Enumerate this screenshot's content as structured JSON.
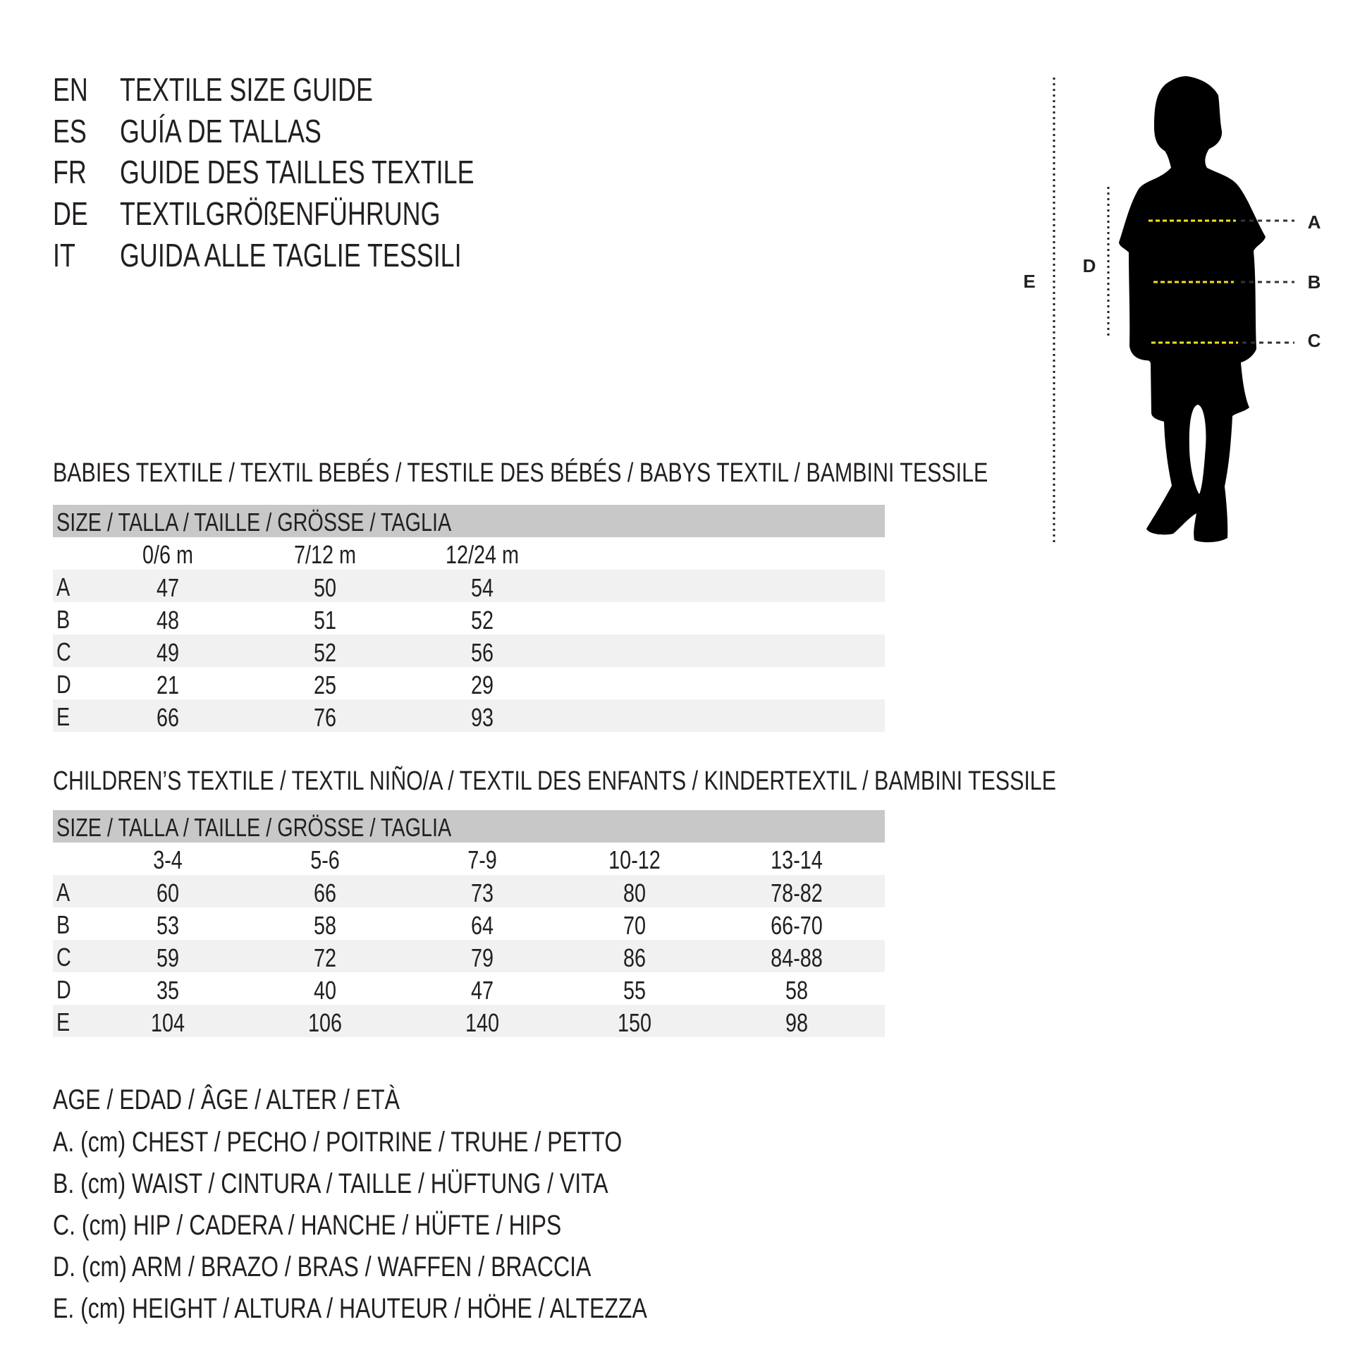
{
  "title_lines": [
    {
      "lang": "EN",
      "text": "TEXTILE SIZE GUIDE"
    },
    {
      "lang": "ES",
      "text": "GUÍA DE TALLAS"
    },
    {
      "lang": "FR",
      "text": "GUIDE DES TAILLES TEXTILE"
    },
    {
      "lang": "DE",
      "text": "TEXTILGRÖßENFÜHRUNG"
    },
    {
      "lang": "IT",
      "text": "GUIDA ALLE TAGLIE TESSILI"
    }
  ],
  "figure": {
    "labels": {
      "A": "A",
      "B": "B",
      "C": "C",
      "D": "D",
      "E": "E"
    },
    "measure_line_color": "#f2e21b",
    "silhouette_color": "#000000"
  },
  "babies": {
    "heading": "BABIES TEXTILE / TEXTIL BEBÉS / TESTILE DES BÉBÉS / BABYS TEXTIL / BAMBINI TESSILE",
    "size_header": "SIZE / TALLA / TAILLE / GRÖSSE / TAGLIA",
    "columns": [
      "0/6 m",
      "7/12 m",
      "12/24 m"
    ],
    "rows": [
      {
        "label": "A",
        "values": [
          "47",
          "50",
          "54"
        ]
      },
      {
        "label": "B",
        "values": [
          "48",
          "51",
          "52"
        ]
      },
      {
        "label": "C",
        "values": [
          "49",
          "52",
          "56"
        ]
      },
      {
        "label": "D",
        "values": [
          "21",
          "25",
          "29"
        ]
      },
      {
        "label": "E",
        "values": [
          "66",
          "76",
          "93"
        ]
      }
    ]
  },
  "children": {
    "heading": "CHILDREN’S TEXTILE / TEXTIL NIÑO/A / TEXTIL DES ENFANTS / KINDERTEXTIL / BAMBINI TESSILE",
    "size_header": "SIZE / TALLA / TAILLE / GRÖSSE / TAGLIA",
    "columns": [
      "3-4",
      "5-6",
      "7-9",
      "10-12",
      "13-14"
    ],
    "rows": [
      {
        "label": "A",
        "values": [
          "60",
          "66",
          "73",
          "80",
          "78-82"
        ]
      },
      {
        "label": "B",
        "values": [
          "53",
          "58",
          "64",
          "70",
          "66-70"
        ]
      },
      {
        "label": "C",
        "values": [
          "59",
          "72",
          "79",
          "86",
          "84-88"
        ]
      },
      {
        "label": "D",
        "values": [
          "35",
          "40",
          "47",
          "55",
          "58"
        ]
      },
      {
        "label": "E",
        "values": [
          "104",
          "106",
          "140",
          "150",
          "98"
        ]
      }
    ]
  },
  "legend": [
    "AGE / EDAD / ÂGE / ALTER / ETÀ",
    "A. (cm) CHEST / PECHO / POITRINE / TRUHE / PETTO",
    "B. (cm) WAIST / CINTURA / TAILLE / HÜFTUNG / VITA",
    "C. (cm) HIP / CADERA / HANCHE / HÜFTE / HIPS",
    "D. (cm) ARM / BRAZO / BRAS / WAFFEN / BRACCIA",
    "E. (cm) HEIGHT / ALTURA / HAUTEUR / HÖHE / ALTEZZA"
  ]
}
